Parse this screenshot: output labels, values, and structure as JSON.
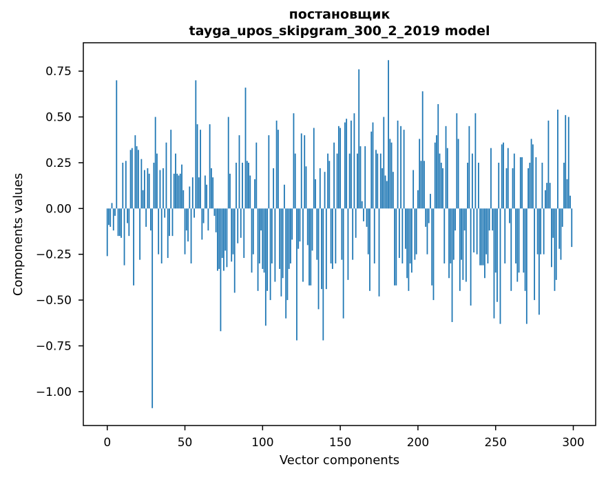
{
  "chart_data": {
    "type": "bar",
    "title": "постановщик",
    "subtitle": "tayga_upos_skipgram_300_2_2019 model",
    "xlabel": "Vector components",
    "ylabel": "Components values",
    "n_components": 300,
    "xticks": [
      0,
      50,
      100,
      150,
      200,
      250,
      300
    ],
    "yticks": [
      0.75,
      0.5,
      0.25,
      0.0,
      -0.25,
      -0.5,
      -0.75,
      -1.0
    ],
    "xlim": [
      -15.4,
      314.4
    ],
    "ylim": [
      -1.185,
      0.905
    ],
    "grid": false,
    "legend": "none",
    "bar_color": "#1f77b4",
    "spine_color": "#000000",
    "text_color": "#000000",
    "background": "#ffffff",
    "values": [
      -0.26,
      -0.09,
      -0.1,
      0.03,
      -0.12,
      -0.04,
      0.7,
      -0.15,
      -0.15,
      -0.16,
      0.25,
      -0.31,
      0.26,
      -0.08,
      -0.15,
      0.32,
      0.33,
      -0.42,
      0.4,
      0.34,
      0.32,
      -0.28,
      0.27,
      0.1,
      0.21,
      -0.1,
      0.22,
      0.19,
      -0.12,
      -1.09,
      0.25,
      0.5,
      0.3,
      -0.25,
      0.21,
      -0.3,
      0.22,
      -0.05,
      0.36,
      -0.27,
      -0.15,
      0.43,
      -0.15,
      0.19,
      0.3,
      0.19,
      0.18,
      0.19,
      0.24,
      0.1,
      -0.25,
      -0.12,
      -0.18,
      0.12,
      -0.3,
      0.17,
      -0.05,
      0.7,
      0.46,
      0.17,
      0.43,
      -0.17,
      -0.08,
      0.18,
      0.13,
      -0.12,
      0.46,
      0.22,
      0.17,
      -0.04,
      -0.13,
      -0.34,
      -0.33,
      -0.67,
      -0.27,
      -0.34,
      -0.23,
      -0.32,
      0.5,
      0.19,
      -0.29,
      -0.25,
      -0.46,
      0.25,
      -0.19,
      0.4,
      -0.16,
      0.25,
      -0.27,
      0.66,
      0.26,
      0.25,
      0.18,
      -0.35,
      -0.25,
      0.16,
      0.36,
      -0.45,
      -0.3,
      -0.12,
      -0.33,
      -0.35,
      -0.64,
      -0.45,
      0.4,
      -0.5,
      -0.3,
      0.22,
      -0.4,
      0.48,
      0.43,
      -0.33,
      -0.48,
      -0.38,
      0.13,
      -0.6,
      -0.5,
      -0.33,
      -0.3,
      -0.17,
      0.52,
      0.3,
      -0.72,
      -0.22,
      -0.18,
      0.41,
      -0.4,
      0.4,
      0.23,
      -0.2,
      -0.42,
      -0.42,
      -0.23,
      0.44,
      0.16,
      -0.28,
      -0.55,
      0.22,
      -0.44,
      -0.72,
      0.2,
      -0.44,
      0.3,
      0.26,
      -0.3,
      -0.33,
      0.36,
      -0.3,
      0.3,
      0.45,
      0.44,
      -0.28,
      -0.6,
      0.47,
      0.49,
      -0.39,
      0.3,
      0.48,
      -0.28,
      0.52,
      -0.16,
      0.3,
      0.76,
      0.34,
      0.04,
      -0.07,
      0.34,
      -0.1,
      -0.25,
      -0.45,
      0.42,
      0.47,
      -0.3,
      0.32,
      0.3,
      -0.48,
      0.3,
      0.22,
      0.5,
      0.18,
      0.15,
      0.81,
      0.38,
      0.36,
      0.2,
      -0.42,
      -0.42,
      0.48,
      -0.27,
      0.45,
      -0.3,
      0.43,
      -0.22,
      -0.38,
      -0.45,
      -0.3,
      -0.35,
      0.21,
      -0.28,
      -0.25,
      0.1,
      0.38,
      0.26,
      0.64,
      0.26,
      -0.1,
      -0.25,
      -0.08,
      0.08,
      -0.42,
      -0.5,
      0.36,
      0.4,
      0.57,
      0.3,
      0.25,
      0.22,
      -0.3,
      0.45,
      0.33,
      -0.38,
      -0.3,
      -0.62,
      -0.28,
      -0.12,
      0.52,
      0.38,
      -0.45,
      -0.28,
      -0.39,
      -0.12,
      -0.4,
      0.25,
      0.45,
      -0.53,
      0.3,
      -0.24,
      0.52,
      -0.25,
      0.25,
      -0.31,
      -0.31,
      -0.31,
      -0.38,
      -0.25,
      -0.3,
      -0.12,
      0.33,
      -0.12,
      -0.6,
      -0.35,
      -0.51,
      0.25,
      -0.63,
      0.35,
      0.36,
      -0.3,
      0.22,
      0.33,
      -0.08,
      -0.45,
      0.22,
      0.3,
      -0.3,
      -0.4,
      -0.35,
      0.28,
      0.28,
      -0.35,
      -0.45,
      -0.63,
      0.22,
      0.25,
      0.38,
      0.35,
      -0.5,
      0.28,
      -0.25,
      -0.58,
      -0.25,
      0.25,
      -0.25,
      0.1,
      0.14,
      0.48,
      0.14,
      -0.32,
      -0.16,
      -0.45,
      -0.39,
      0.54,
      -0.22,
      -0.28,
      -0.1,
      0.25,
      0.51,
      0.16,
      0.5,
      0.07,
      -0.21
    ]
  }
}
